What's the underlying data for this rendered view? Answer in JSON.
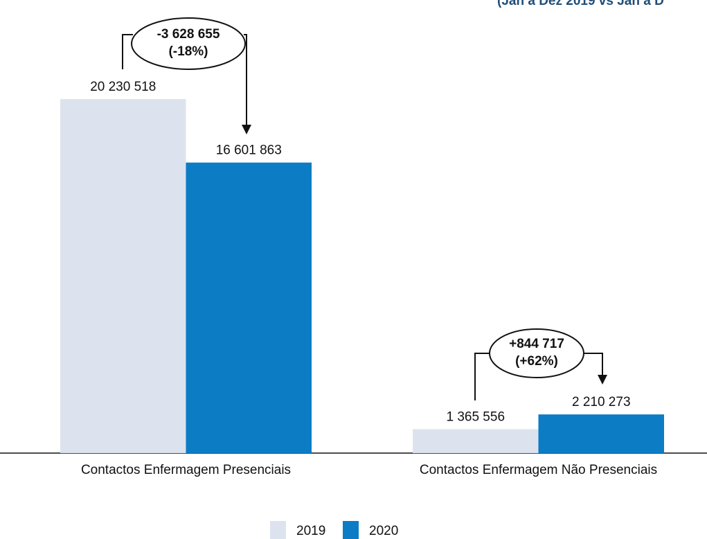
{
  "chart_data": {
    "type": "bar",
    "subtitle": "(Jan a Dez 2019 vs Jan a D",
    "categories": [
      "Contactos Enfermagem Presenciais",
      "Contactos Enfermagem Não Presenciais"
    ],
    "series": [
      {
        "name": "2019",
        "color": "#dde3ee",
        "values": [
          20230518,
          1365556
        ],
        "value_labels": [
          "20 230 518",
          "1 365 556"
        ]
      },
      {
        "name": "2020",
        "color": "#0c7cc5",
        "values": [
          16601863,
          2210273
        ],
        "value_labels": [
          "16 601 863",
          "2 210 273"
        ]
      }
    ],
    "annotations": [
      {
        "change": "-3 628 655",
        "percent": "(-18%)"
      },
      {
        "change": "+844 717",
        "percent": "(+62%)"
      }
    ],
    "legend": "bottom"
  }
}
